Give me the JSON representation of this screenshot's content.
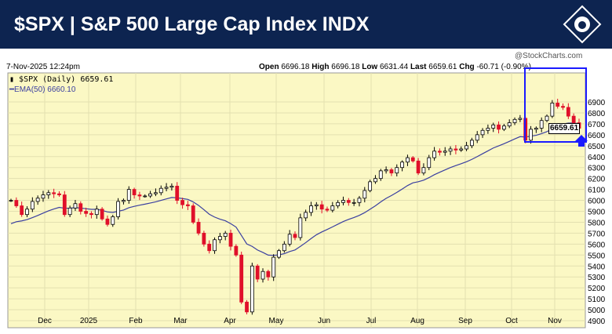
{
  "header": {
    "title": "$SPX | S&P 500 Large Cap Index INDX"
  },
  "info": {
    "timestamp": "7-Nov-2025 12:24pm",
    "watermark": "@StockCharts.com",
    "open_label": "Open",
    "open": "6696.18",
    "high_label": "High",
    "high": "6696.18",
    "low_label": "Low",
    "low": "6631.44",
    "last_label": "Last",
    "last": "6659.61",
    "chg_label": "Chg",
    "chg": "-60.71 (-0.90%)"
  },
  "legend": {
    "series": "$SPX (Daily) 6659.61",
    "ema": "EMA(50) 6660.10"
  },
  "colors": {
    "background": "#fbf8c4",
    "up": "#000000",
    "down": "#e0102a",
    "ema": "#3a3fa0",
    "highlight": "#1a1aff",
    "header": "#0d2450"
  },
  "chart_data": {
    "type": "candlestick",
    "ylim": [
      4800,
      7000
    ],
    "y_ticks": [
      4900,
      5000,
      5100,
      5200,
      5300,
      5400,
      5500,
      5600,
      5700,
      5800,
      5900,
      6000,
      6100,
      6200,
      6300,
      6400,
      6500,
      6600,
      6700,
      6800,
      6900
    ],
    "x_ticks": [
      "Dec",
      "2025",
      "Feb",
      "Mar",
      "Apr",
      "May",
      "Jun",
      "Jul",
      "Aug",
      "Sep",
      "Oct",
      "Nov"
    ],
    "last_price_label": "6659.61",
    "closes": [
      6000,
      5950,
      5870,
      5920,
      5990,
      6020,
      6050,
      6070,
      6060,
      6050,
      5870,
      5930,
      5970,
      5900,
      5880,
      5870,
      5920,
      5830,
      5780,
      5850,
      5990,
      6000,
      6100,
      6050,
      6040,
      6040,
      6060,
      6070,
      6110,
      6120,
      6130,
      6000,
      5960,
      5950,
      5800,
      5700,
      5600,
      5540,
      5640,
      5670,
      5700,
      5580,
      5500,
      5070,
      4980,
      5400,
      5280,
      5350,
      5300,
      5480,
      5540,
      5600,
      5690,
      5660,
      5840,
      5890,
      5950,
      5960,
      5920,
      5910,
      5950,
      5980,
      6000,
      5980,
      5980,
      6020,
      6090,
      6170,
      6200,
      6270,
      6280,
      6250,
      6300,
      6350,
      6390,
      6360,
      6250,
      6300,
      6390,
      6450,
      6440,
      6450,
      6470,
      6460,
      6470,
      6500,
      6550,
      6600,
      6640,
      6660,
      6690,
      6650,
      6680,
      6710,
      6740,
      6750,
      6550,
      6650,
      6660,
      6730,
      6770,
      6890,
      6860,
      6850,
      6770,
      6710,
      6659.61
    ],
    "series": [
      {
        "name": "$SPX (Daily)"
      },
      {
        "name": "EMA(50)",
        "last": 6660.1
      }
    ],
    "grid": true,
    "legend": "top-left"
  }
}
